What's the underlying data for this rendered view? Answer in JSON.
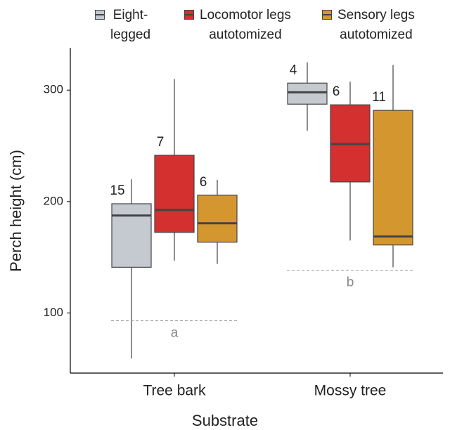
{
  "chart_data": {
    "type": "box",
    "categories": [
      "Tree bark",
      "Mossy tree"
    ],
    "series": [
      {
        "name": "Eight-\nlegged",
        "color": "#c5cad1",
        "min": [
          59,
          263.5
        ],
        "q1": [
          141,
          287.4
        ],
        "median": [
          187.4,
          298
        ],
        "q3": [
          198,
          306.3
        ],
        "max": [
          220,
          325
        ],
        "counts": [
          15,
          4
        ]
      },
      {
        "name": "Locomotor legs\nautotomized",
        "color": "#d3302f",
        "min": [
          147,
          165
        ],
        "q1": [
          172.3,
          217.6
        ],
        "median": [
          192.5,
          251.6
        ],
        "q3": [
          241.5,
          286.8
        ],
        "max": [
          310,
          307.5
        ],
        "counts": [
          7,
          6
        ]
      },
      {
        "name": "Sensory legs\nautotomized",
        "color": "#d4962e",
        "min": [
          144,
          141
        ],
        "q1": [
          163.5,
          161
        ],
        "median": [
          180.5,
          168.6
        ],
        "q3": [
          205.7,
          281.8
        ],
        "max": [
          219.5,
          322.6
        ],
        "counts": [
          6,
          11
        ]
      }
    ],
    "annotations": [
      {
        "text": "a",
        "category": "Tree bark",
        "y": 93
      },
      {
        "text": "b",
        "category": "Mossy tree",
        "y": 138.4
      }
    ],
    "x_label": "Substrate",
    "y_label": "Perch height (cm)",
    "ylim": [
      46,
      338
    ],
    "yticks": [
      100,
      200,
      300
    ],
    "grid": false,
    "legend": "top"
  }
}
